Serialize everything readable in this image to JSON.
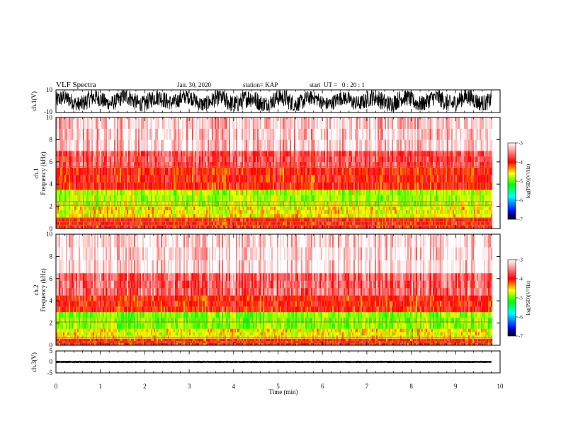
{
  "header": {
    "title": "VLF Spectra",
    "date": "Jan. 30, 2020",
    "station": "station= KAP",
    "start": "start  UT =   0 : 20 : 1"
  },
  "chart_data": [
    {
      "type": "line",
      "panel": "ch1-waveform",
      "ylabel": "ch.1(V)",
      "ylim": [
        -10,
        10
      ],
      "yticks": [
        "10",
        "-10"
      ],
      "xlim": [
        0,
        10
      ],
      "data_end_min": 9.8,
      "x_min": [
        0.0,
        0.4,
        0.8,
        1.2,
        1.6,
        2.0,
        2.4,
        2.8,
        3.2,
        3.6,
        4.0,
        4.4,
        4.8,
        5.2,
        5.6,
        6.0,
        6.4,
        6.8,
        7.2,
        7.6,
        8.0,
        8.4,
        8.8,
        9.2,
        9.6,
        9.8
      ],
      "y_envelope_max": [
        9,
        8,
        10,
        9,
        10,
        9,
        10,
        10,
        8,
        9,
        10,
        10,
        9,
        10,
        9,
        8,
        8,
        9,
        10,
        10,
        9,
        9,
        10,
        10,
        10,
        9
      ],
      "y_envelope_min": [
        -9,
        -8,
        -9,
        -7,
        -8,
        -9,
        -8,
        -6,
        -8,
        -9,
        -9,
        -10,
        -8,
        -9,
        -8,
        -7,
        -8,
        -7,
        -9,
        -9,
        -8,
        -8,
        -9,
        -8,
        -8,
        -8
      ]
    },
    {
      "type": "heatmap",
      "panel": "ch1-spectrogram",
      "ylabel": "ch.1\nFrequency  (kHz)",
      "xlim": [
        0,
        10
      ],
      "ylim": [
        0,
        10
      ],
      "yticks": [
        "0",
        "2",
        "4",
        "6",
        "8",
        "10"
      ],
      "data_end_min": 9.8,
      "band_levels": [
        {
          "fmin": 0.0,
          "fmax": 1.0,
          "level": -4.0
        },
        {
          "fmin": 1.0,
          "fmax": 2.0,
          "level": -4.6
        },
        {
          "fmin": 2.0,
          "fmax": 3.5,
          "level": -4.8
        },
        {
          "fmin": 3.5,
          "fmax": 5.5,
          "level": -4.0
        },
        {
          "fmin": 5.5,
          "fmax": 7.0,
          "level": -3.7
        },
        {
          "fmin": 7.0,
          "fmax": 10.0,
          "level": -3.2
        }
      ],
      "narrowband_lines_khz": [
        0.3,
        0.6,
        0.9,
        2.1,
        2.4,
        5.6
      ]
    },
    {
      "type": "heatmap",
      "panel": "ch2-spectrogram",
      "ylabel": "ch.2\nFrequency  (kHz)",
      "xlim": [
        0,
        10
      ],
      "ylim": [
        0,
        10
      ],
      "yticks": [
        "0",
        "2",
        "4",
        "6",
        "8",
        "10"
      ],
      "data_end_min": 9.8,
      "band_levels": [
        {
          "fmin": 0.0,
          "fmax": 0.6,
          "level": -4.0
        },
        {
          "fmin": 0.6,
          "fmax": 1.5,
          "level": -4.6
        },
        {
          "fmin": 1.5,
          "fmax": 3.0,
          "level": -4.9
        },
        {
          "fmin": 3.0,
          "fmax": 4.5,
          "level": -4.0
        },
        {
          "fmin": 4.5,
          "fmax": 6.5,
          "level": -3.6
        },
        {
          "fmin": 6.5,
          "fmax": 10.0,
          "level": -3.1
        }
      ],
      "narrowband_lines_khz": [
        0.3,
        0.7,
        2.1
      ]
    },
    {
      "type": "line",
      "panel": "ch3-waveform",
      "ylabel": "ch.3(V)",
      "ylim": [
        -5,
        5
      ],
      "yticks": [
        "5",
        "0",
        "-5"
      ],
      "xlim": [
        0,
        10
      ],
      "data_end_min": 9.8,
      "y_mean": 0,
      "y_amplitude": 0.5
    }
  ],
  "xaxis": {
    "label": "Time  (min)",
    "ticks": [
      "0",
      "1",
      "2",
      "3",
      "4",
      "5",
      "6",
      "7",
      "8",
      "9",
      "10"
    ]
  },
  "colorbar": {
    "label": "log(PSD)(V²/Hz)",
    "ticks": [
      "-3",
      "-4",
      "-5",
      "-6",
      "-7"
    ],
    "range": [
      -7,
      -3
    ],
    "colors": [
      "#000000",
      "#0000ff",
      "#00ffff",
      "#00ff00",
      "#ffff00",
      "#ff0000",
      "#ffffff"
    ]
  }
}
